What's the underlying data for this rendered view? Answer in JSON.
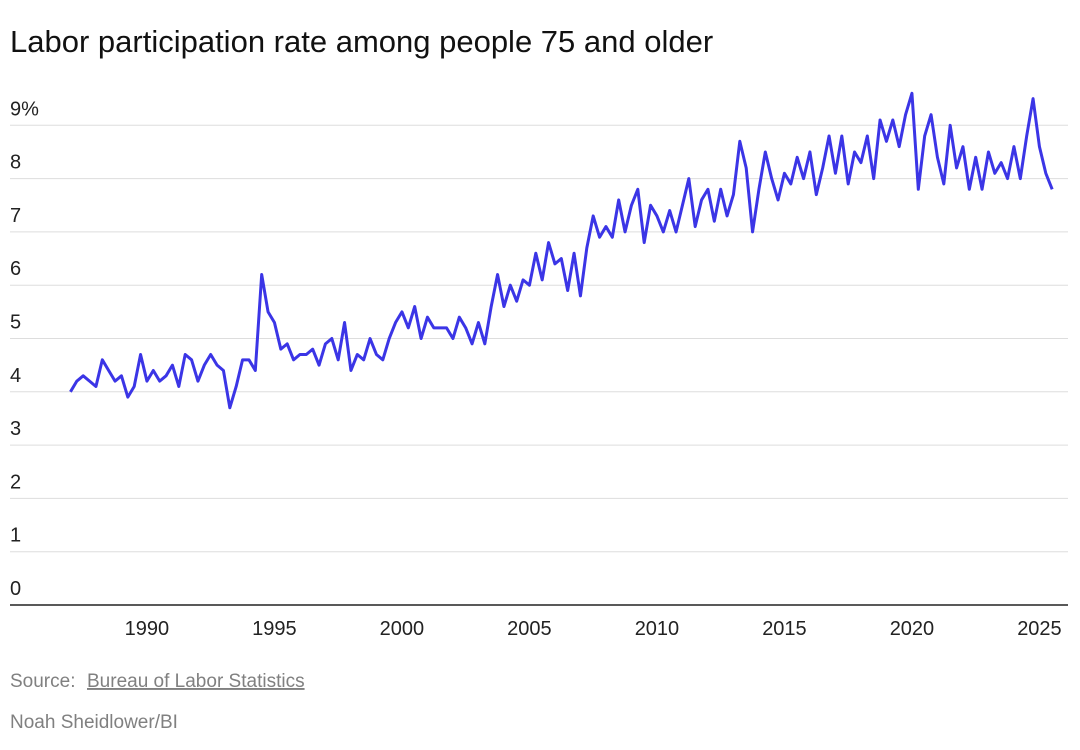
{
  "chart_data": {
    "type": "line",
    "title": "Labor participation rate among people 75 and older",
    "source_label": "Source:",
    "source": "Bureau of Labor Statistics",
    "credit": "Noah Sheidlower/BI",
    "x": [
      1987,
      1987.25,
      1987.5,
      1987.75,
      1988,
      1988.25,
      1988.5,
      1988.75,
      1989,
      1989.25,
      1989.5,
      1989.75,
      1990,
      1990.25,
      1990.5,
      1990.75,
      1991,
      1991.25,
      1991.5,
      1991.75,
      1992,
      1992.25,
      1992.5,
      1992.75,
      1993,
      1993.25,
      1993.5,
      1993.75,
      1994,
      1994.25,
      1994.5,
      1994.75,
      1995,
      1995.25,
      1995.5,
      1995.75,
      1996,
      1996.25,
      1996.5,
      1996.75,
      1997,
      1997.25,
      1997.5,
      1997.75,
      1998,
      1998.25,
      1998.5,
      1998.75,
      1999,
      1999.25,
      1999.5,
      1999.75,
      2000,
      2000.25,
      2000.5,
      2000.75,
      2001,
      2001.25,
      2001.5,
      2001.75,
      2002,
      2002.25,
      2002.5,
      2002.75,
      2003,
      2003.25,
      2003.5,
      2003.75,
      2004,
      2004.25,
      2004.5,
      2004.75,
      2005,
      2005.25,
      2005.5,
      2005.75,
      2006,
      2006.25,
      2006.5,
      2006.75,
      2007,
      2007.25,
      2007.5,
      2007.75,
      2008,
      2008.25,
      2008.5,
      2008.75,
      2009,
      2009.25,
      2009.5,
      2009.75,
      2010,
      2010.25,
      2010.5,
      2010.75,
      2011,
      2011.25,
      2011.5,
      2011.75,
      2012,
      2012.25,
      2012.5,
      2012.75,
      2013,
      2013.25,
      2013.5,
      2013.75,
      2014,
      2014.25,
      2014.5,
      2014.75,
      2015,
      2015.25,
      2015.5,
      2015.75,
      2016,
      2016.25,
      2016.5,
      2016.75,
      2017,
      2017.25,
      2017.5,
      2017.75,
      2018,
      2018.25,
      2018.5,
      2018.75,
      2019,
      2019.25,
      2019.5,
      2019.75,
      2020,
      2020.25,
      2020.5,
      2020.75,
      2021,
      2021.25,
      2021.5,
      2021.75,
      2022,
      2022.25,
      2022.5,
      2022.75,
      2023,
      2023.25,
      2023.5,
      2023.75,
      2024,
      2024.25,
      2024.5,
      2024.75,
      2025,
      2025.25,
      2025.5
    ],
    "series": [
      {
        "name": "Labor participation rate",
        "color": "#3b35e6",
        "values": [
          4.0,
          4.2,
          4.3,
          4.2,
          4.1,
          4.6,
          4.4,
          4.2,
          4.3,
          3.9,
          4.1,
          4.7,
          4.2,
          4.4,
          4.2,
          4.3,
          4.5,
          4.1,
          4.7,
          4.6,
          4.2,
          4.5,
          4.7,
          4.5,
          4.4,
          3.7,
          4.1,
          4.6,
          4.6,
          4.4,
          6.2,
          5.5,
          5.3,
          4.8,
          4.9,
          4.6,
          4.7,
          4.7,
          4.8,
          4.5,
          4.9,
          5.0,
          4.6,
          5.3,
          4.4,
          4.7,
          4.6,
          5.0,
          4.7,
          4.6,
          5.0,
          5.3,
          5.5,
          5.2,
          5.6,
          5.0,
          5.4,
          5.2,
          5.2,
          5.2,
          5.0,
          5.4,
          5.2,
          4.9,
          5.3,
          4.9,
          5.6,
          6.2,
          5.6,
          6.0,
          5.7,
          6.1,
          6.0,
          6.6,
          6.1,
          6.8,
          6.4,
          6.5,
          5.9,
          6.6,
          5.8,
          6.7,
          7.3,
          6.9,
          7.1,
          6.9,
          7.6,
          7.0,
          7.5,
          7.8,
          6.8,
          7.5,
          7.3,
          7.0,
          7.4,
          7.0,
          7.5,
          8.0,
          7.1,
          7.6,
          7.8,
          7.2,
          7.8,
          7.3,
          7.7,
          8.7,
          8.2,
          7.0,
          7.8,
          8.5,
          8.0,
          7.6,
          8.1,
          7.9,
          8.4,
          8.0,
          8.5,
          7.7,
          8.2,
          8.8,
          8.1,
          8.8,
          7.9,
          8.5,
          8.3,
          8.8,
          8.0,
          9.1,
          8.7,
          9.1,
          8.6,
          9.2,
          9.6,
          7.8,
          8.8,
          9.2,
          8.4,
          7.9,
          9.0,
          8.2,
          8.6,
          7.8,
          8.4,
          7.8,
          8.5,
          8.1,
          8.3,
          8.0,
          8.6,
          8.0,
          8.8,
          9.5,
          8.6,
          8.1,
          7.8
        ]
      }
    ],
    "xlim": [
      1984.63,
      2026.12
    ],
    "xticks": [
      1990,
      1995,
      2000,
      2005,
      2010,
      2015,
      2020,
      2025
    ],
    "ylim": [
      0,
      9.7
    ],
    "yticks": [
      0,
      1,
      2,
      3,
      4,
      5,
      6,
      7,
      8,
      {
        "value": 9,
        "label": "9%"
      }
    ],
    "grid": true
  }
}
